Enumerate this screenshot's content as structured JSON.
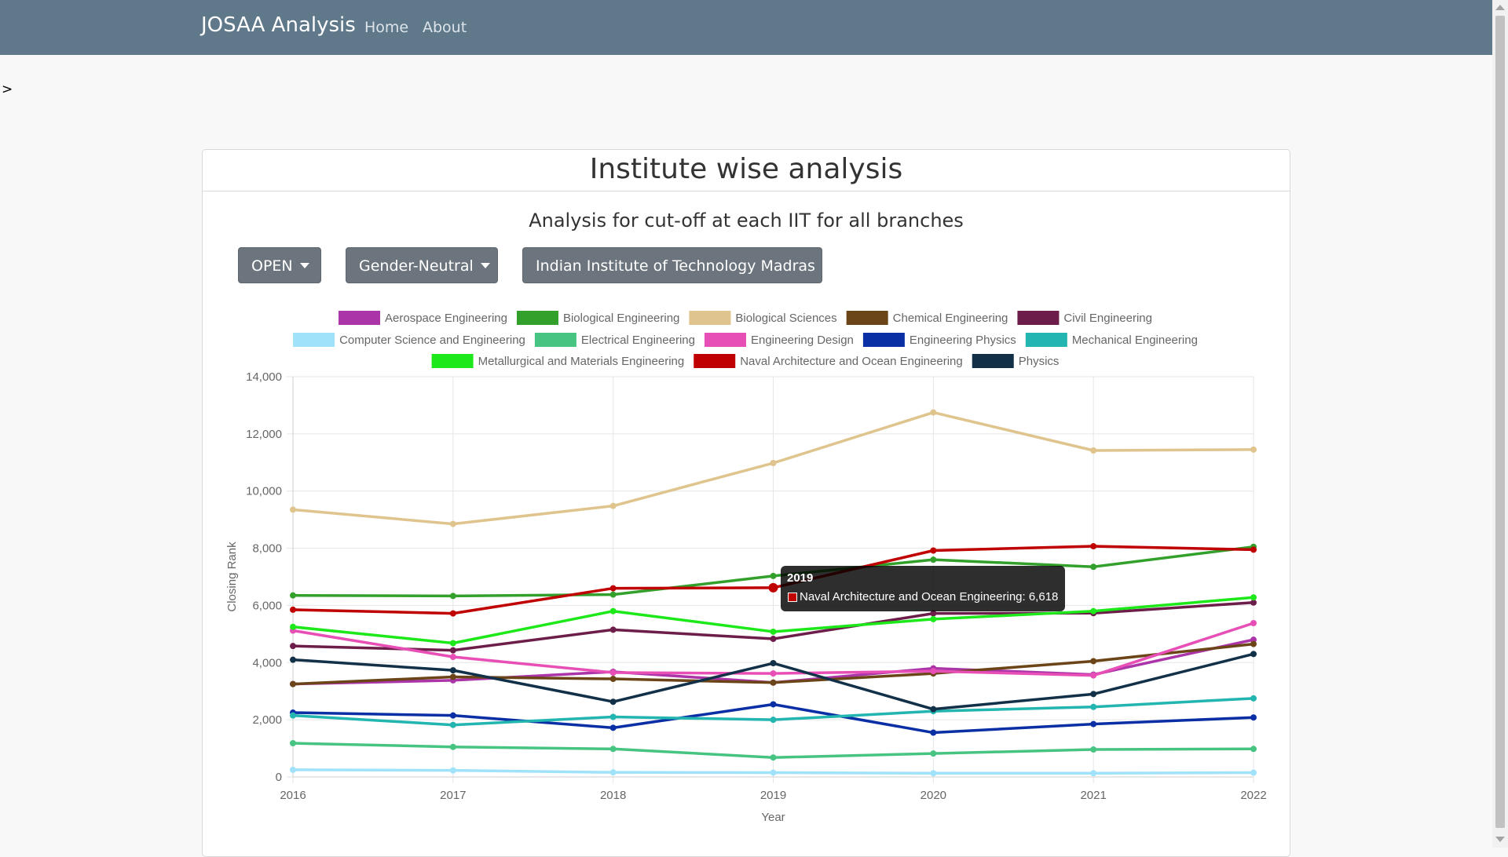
{
  "navbar": {
    "brand": "JOSAA Analysis",
    "links": [
      "Home",
      "About"
    ]
  },
  "stray_text": ">",
  "card": {
    "title": "Institute wise analysis",
    "subtitle": "Analysis for cut-off at each IIT for all branches"
  },
  "filters": {
    "category": "OPEN",
    "gender": "Gender-Neutral",
    "institute": "Indian Institute of Technology Madras"
  },
  "tooltip": {
    "title": "2019",
    "body": "Naval Architecture and Ocean Engineering: 6,618",
    "color": "#c00000"
  },
  "chart_data": {
    "type": "line",
    "xlabel": "Year",
    "ylabel": "Closing Rank",
    "ylim": [
      0,
      14000
    ],
    "y_ticks": [
      "0",
      "2,000",
      "4,000",
      "6,000",
      "8,000",
      "10,000",
      "12,000",
      "14,000"
    ],
    "x": [
      "2016",
      "2017",
      "2018",
      "2019",
      "2020",
      "2021",
      "2022"
    ],
    "legend_position": "top",
    "grid": true,
    "series": [
      {
        "name": "Aerospace Engineering",
        "color": "#ab35a8",
        "values": [
          3250,
          3380,
          3680,
          3300,
          3800,
          3580,
          4800
        ]
      },
      {
        "name": "Biological Engineering",
        "color": "#33a02c",
        "values": [
          6350,
          6330,
          6380,
          7030,
          7600,
          7350,
          8050
        ]
      },
      {
        "name": "Biological Sciences",
        "color": "#e0c48e",
        "values": [
          9350,
          8850,
          9480,
          10980,
          12750,
          11420,
          11450
        ]
      },
      {
        "name": "Chemical Engineering",
        "color": "#6b4517",
        "values": [
          3250,
          3500,
          3430,
          3300,
          3620,
          4050,
          4650
        ]
      },
      {
        "name": "Civil Engineering",
        "color": "#6d1d49",
        "values": [
          4580,
          4430,
          5150,
          4830,
          5720,
          5730,
          6100
        ]
      },
      {
        "name": "Computer Science and Engineering",
        "color": "#9fe2fa",
        "values": [
          250,
          230,
          160,
          150,
          130,
          130,
          150
        ]
      },
      {
        "name": "Electrical Engineering",
        "color": "#47c482",
        "values": [
          1180,
          1050,
          980,
          680,
          820,
          960,
          980
        ]
      },
      {
        "name": "Engineering Design",
        "color": "#e84fb6",
        "values": [
          5120,
          4200,
          3650,
          3620,
          3700,
          3550,
          5380
        ]
      },
      {
        "name": "Engineering Physics",
        "color": "#0a2fa5",
        "values": [
          2250,
          2150,
          1720,
          2540,
          1550,
          1850,
          2080
        ]
      },
      {
        "name": "Mechanical Engineering",
        "color": "#23b5b0",
        "values": [
          2150,
          1820,
          2100,
          2000,
          2300,
          2450,
          2750
        ]
      },
      {
        "name": "Metallurgical and Materials Engineering",
        "color": "#1de81a",
        "values": [
          5250,
          4680,
          5800,
          5080,
          5520,
          5800,
          6280
        ]
      },
      {
        "name": "Naval Architecture and Ocean Engineering",
        "color": "#c00000",
        "values": [
          5850,
          5720,
          6600,
          6618,
          7920,
          8070,
          7950
        ]
      },
      {
        "name": "Physics",
        "color": "#123047",
        "values": [
          4100,
          3730,
          2630,
          3980,
          2370,
          2900,
          4300
        ]
      }
    ]
  }
}
